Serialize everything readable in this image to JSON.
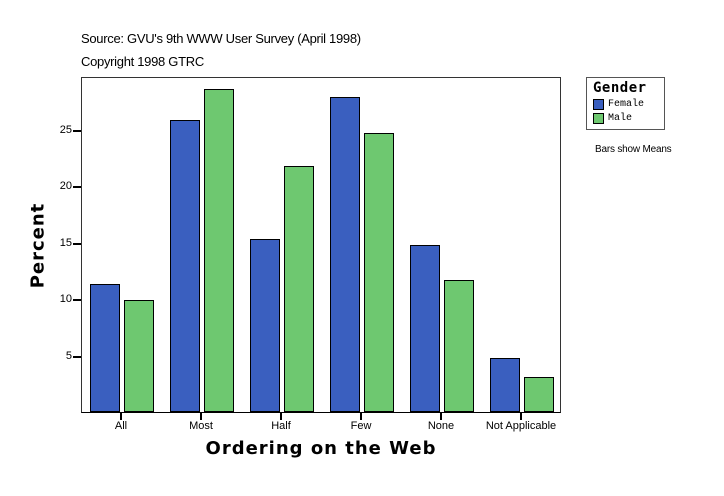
{
  "header": {
    "source": "Source: GVU's 9th WWW User Survey (April 1998)",
    "copyright": "Copyright 1998 GTRC"
  },
  "legend": {
    "title": "Gender",
    "items": [
      {
        "label": "Female",
        "color": "#3a5fbf"
      },
      {
        "label": "Male",
        "color": "#6ec870"
      }
    ]
  },
  "note": "Bars show Means",
  "axes": {
    "ylabel": "Percent",
    "xlabel": "Ordering on the Web",
    "yticks": [
      "5",
      "10",
      "15",
      "20",
      "25"
    ],
    "xticks": [
      "All",
      "Most",
      "Half",
      "Few",
      "None",
      "Not Applicable"
    ]
  },
  "chart_data": {
    "type": "bar",
    "title": "",
    "subtitle": "Source: GVU's 9th WWW User Survey (April 1998) / Copyright 1998 GTRC",
    "xlabel": "Ordering on the Web",
    "ylabel": "Percent",
    "categories": [
      "All",
      "Most",
      "Half",
      "Few",
      "None",
      "Not Applicable"
    ],
    "series": [
      {
        "name": "Female",
        "color": "#3a5fbf",
        "values": [
          11.3,
          25.8,
          15.3,
          27.9,
          14.8,
          4.8
        ]
      },
      {
        "name": "Male",
        "color": "#6ec870",
        "values": [
          9.9,
          28.6,
          21.8,
          24.7,
          11.7,
          3.1
        ]
      }
    ],
    "ylim": [
      0,
      29.7
    ],
    "yticks": [
      5,
      10,
      15,
      20,
      25
    ],
    "grid": false,
    "legend_position": "right",
    "legend_title": "Gender",
    "annotations": [
      "Bars show Means"
    ]
  }
}
